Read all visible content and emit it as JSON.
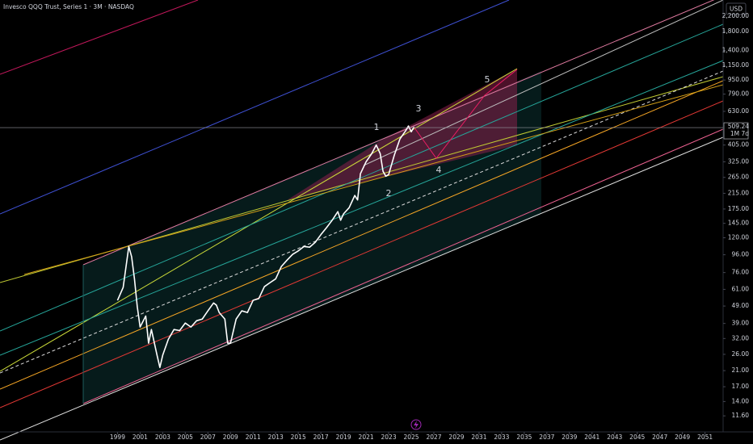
{
  "chart_data": {
    "type": "line",
    "title": "Invesco QQQ Trust, Series 1 · 3M · NASDAQ",
    "currency": "USD",
    "last_price": 509.24,
    "countdown": "1M 7d",
    "color": "#ffffff",
    "log_scale": true,
    "annotations": [
      "1",
      "2",
      "3",
      "4",
      "5"
    ],
    "x": [
      1999,
      1999.5,
      2000,
      2000.25,
      2000.5,
      2000.75,
      2001,
      2001.5,
      2001.75,
      2002,
      2002.5,
      2002.75,
      2003,
      2003.5,
      2004,
      2004.5,
      2005,
      2005.5,
      2006,
      2006.5,
      2007,
      2007.5,
      2007.75,
      2008,
      2008.5,
      2008.75,
      2009,
      2009.5,
      2010,
      2010.5,
      2011,
      2011.5,
      2012,
      2012.5,
      2013,
      2013.5,
      2014,
      2014.5,
      2015,
      2015.5,
      2016,
      2016.5,
      2017,
      2017.5,
      2018,
      2018.5,
      2018.75,
      2019,
      2019.5,
      2020,
      2020.25,
      2020.5,
      2021,
      2021.5,
      2021.9,
      2022.25,
      2022.5,
      2022.75,
      2023,
      2023.5,
      2024,
      2024.5,
      2024.75,
      2025,
      2025.25
    ],
    "values": [
      52.8,
      62.5,
      107,
      93.5,
      70,
      48.5,
      37.2,
      43,
      30.1,
      36,
      25.7,
      21.9,
      25.7,
      31.7,
      36,
      35.5,
      39.2,
      37.2,
      40.4,
      41.3,
      46,
      51,
      49.6,
      45,
      41.3,
      30.1,
      30.1,
      41.3,
      46,
      45,
      52.8,
      54,
      63.2,
      66.6,
      70,
      82.3,
      89.4,
      96.5,
      101,
      107,
      106,
      113,
      125,
      137,
      151,
      169,
      151,
      164,
      178,
      209,
      197,
      278,
      325,
      362,
      405,
      362,
      287,
      269,
      275,
      355,
      439,
      488,
      520,
      482,
      514
    ],
    "xlim": [
      1988.6,
      2052.6
    ],
    "xticks": [
      1999,
      2001,
      2003,
      2005,
      2007,
      2009,
      2011,
      2013,
      2015,
      2017,
      2019,
      2021,
      2023,
      2025,
      2027,
      2029,
      2031,
      2033,
      2035,
      2037,
      2039,
      2041,
      2043,
      2045,
      2047,
      2049,
      2051
    ],
    "ylim": [
      9.4,
      2715
    ],
    "yticks": [
      {
        "value": 11.6,
        "label": "11.60"
      },
      {
        "value": 14,
        "label": "14.00"
      },
      {
        "value": 17,
        "label": "17.00"
      },
      {
        "value": 21,
        "label": "21.00"
      },
      {
        "value": 26,
        "label": "26.00"
      },
      {
        "value": 32,
        "label": "32.00"
      },
      {
        "value": 39,
        "label": "39.00"
      },
      {
        "value": 49,
        "label": "49.00"
      },
      {
        "value": 61,
        "label": "61.00"
      },
      {
        "value": 76,
        "label": "76.00"
      },
      {
        "value": 96,
        "label": "96.00"
      },
      {
        "value": 120,
        "label": "120.00"
      },
      {
        "value": 145,
        "label": "145.00"
      },
      {
        "value": 175,
        "label": "175.00"
      },
      {
        "value": 215,
        "label": "215.00"
      },
      {
        "value": 265,
        "label": "265.00"
      },
      {
        "value": 325,
        "label": "325.00"
      },
      {
        "value": 405,
        "label": "405.00"
      },
      {
        "value": 630,
        "label": "630.00"
      },
      {
        "value": 790,
        "label": "790.00"
      },
      {
        "value": 950,
        "label": "950.00"
      },
      {
        "value": 1150,
        "label": "1,150.00"
      },
      {
        "value": 1400,
        "label": "1,400.00"
      },
      {
        "value": 1800,
        "label": "1,800.00"
      },
      {
        "value": 2200,
        "label": "2,200.00"
      }
    ]
  }
}
